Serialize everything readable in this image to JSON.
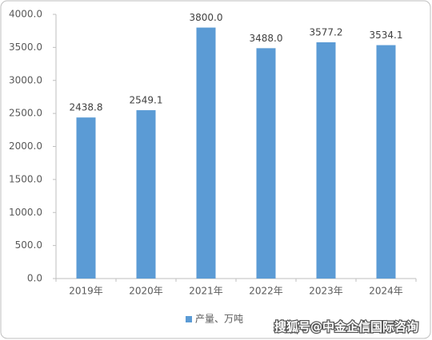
{
  "chart_data": {
    "type": "bar",
    "categories": [
      "2019年",
      "2020年",
      "2021年",
      "2022年",
      "2023年",
      "2024年"
    ],
    "series": [
      {
        "name": "产量、万吨",
        "color": "#5b9bd5",
        "values": [
          2438.8,
          2549.1,
          3800.0,
          3488.0,
          3577.2,
          3534.1
        ],
        "value_labels": [
          "2438.8",
          "2549.1",
          "3800.0",
          "3488.0",
          "3577.2",
          "3534.1"
        ]
      }
    ],
    "ylim": [
      0,
      4000
    ],
    "yticks": [
      {
        "value": 0,
        "label": "0.0"
      },
      {
        "value": 500,
        "label": "500.0"
      },
      {
        "value": 1000,
        "label": "1000.0"
      },
      {
        "value": 1500,
        "label": "1500.0"
      },
      {
        "value": 2000,
        "label": "2000.0"
      },
      {
        "value": 2500,
        "label": "2500.0"
      },
      {
        "value": 3000,
        "label": "3000.0"
      },
      {
        "value": 3500,
        "label": "3500.0"
      },
      {
        "value": 4000,
        "label": "4000.0"
      }
    ],
    "legend": "bottom",
    "watermark": "搜狐号@中金企信国际咨询"
  }
}
